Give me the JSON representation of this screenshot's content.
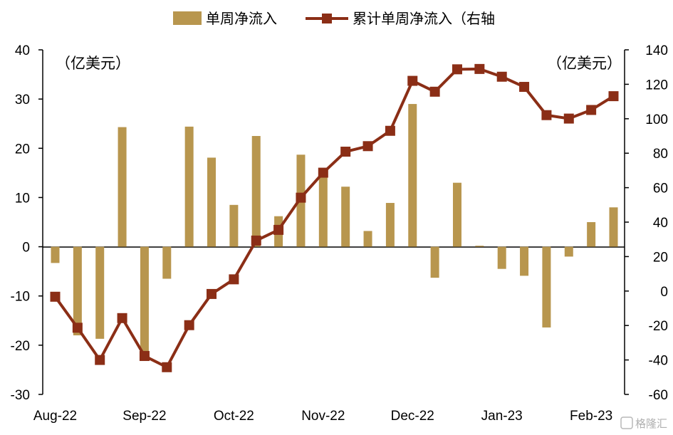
{
  "chart_data": {
    "type": "bar+line",
    "title": "",
    "legend": {
      "placement": "top-center",
      "entries": [
        {
          "label": "单周净流入",
          "kind": "bar"
        },
        {
          "label": "累计单周净流入（右轴",
          "kind": "line-marker"
        }
      ]
    },
    "unit_left": "（亿美元）",
    "unit_right": "（亿美元）",
    "x_tick_labels": [
      "Aug-22",
      "Sep-22",
      "Oct-22",
      "Nov-22",
      "Dec-22",
      "Jan-23",
      "Feb-23"
    ],
    "y_left": {
      "min": -30,
      "max": 40,
      "step": 10,
      "ticks": [
        "-30",
        "-20",
        "-10",
        "0",
        "10",
        "20",
        "30",
        "40"
      ]
    },
    "y_right": {
      "min": -60,
      "max": 140,
      "step": 20,
      "ticks": [
        "-60",
        "-40",
        "-20",
        "0",
        "20",
        "40",
        "60",
        "80",
        "100",
        "120",
        "140"
      ]
    },
    "series": [
      {
        "name": "单周净流入",
        "type": "bar",
        "axis": "left",
        "color": "#b8964e",
        "values": [
          -3.3,
          -18.0,
          -18.7,
          24.3,
          -22.0,
          -6.5,
          24.4,
          18.1,
          8.5,
          22.5,
          6.2,
          18.7,
          14.5,
          12.2,
          3.2,
          8.9,
          29.0,
          -6.3,
          13.0,
          0.2,
          -4.5,
          -5.9,
          -16.4,
          -2.0,
          5.0,
          8.0
        ]
      },
      {
        "name": "累计单周净流入（右轴",
        "type": "line",
        "axis": "right",
        "color": "#8b2e16",
        "values": [
          -3.3,
          -21.3,
          -40.0,
          -15.7,
          -37.7,
          -44.2,
          -19.8,
          -1.7,
          6.8,
          29.3,
          35.5,
          54.2,
          68.7,
          80.9,
          84.1,
          93.0,
          122.0,
          115.7,
          128.7,
          128.9,
          124.4,
          118.5,
          102.1,
          100.1,
          105.1,
          113.1
        ]
      }
    ],
    "grid": false
  },
  "watermark": {
    "text": "格隆汇"
  }
}
